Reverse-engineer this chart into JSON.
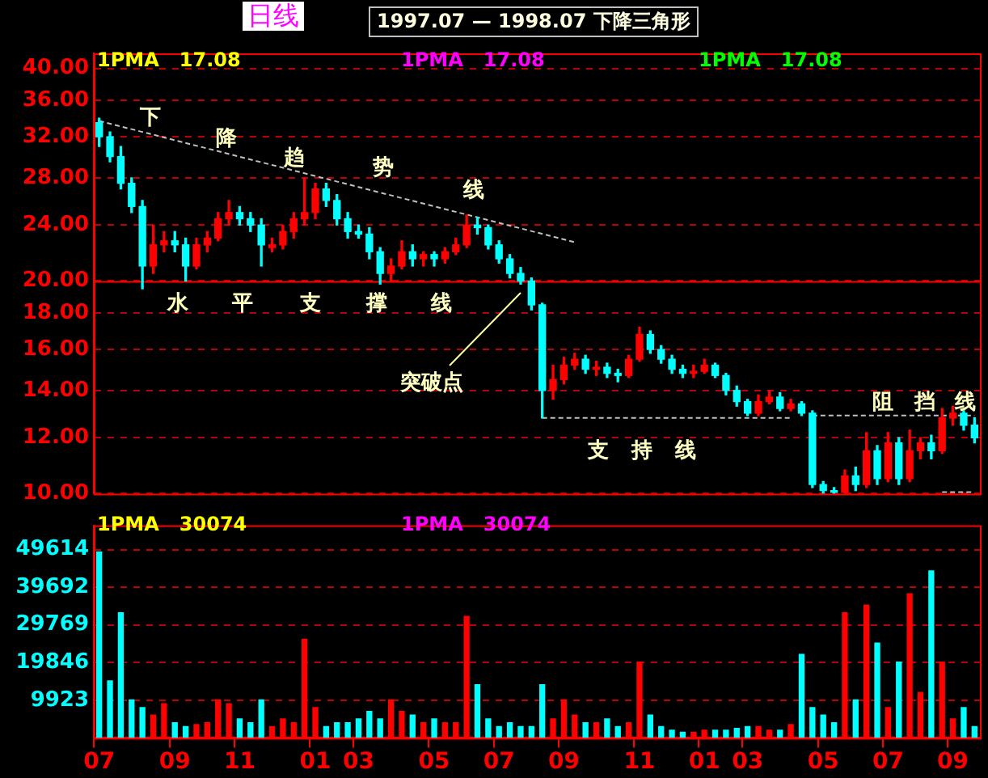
{
  "chart_data": [
    {
      "type": "candlestick",
      "title": "1997.07 — 1998.07 下降三角形",
      "subtitle": "日线",
      "categories": [
        "07",
        null,
        null,
        null,
        null,
        null,
        null,
        "09",
        null,
        null,
        null,
        null,
        null,
        "11",
        null,
        null,
        null,
        null,
        null,
        null,
        "01",
        null,
        null,
        null,
        "03",
        null,
        null,
        null,
        null,
        null,
        null,
        "05",
        null,
        null,
        null,
        null,
        null,
        "07",
        null,
        null,
        null,
        null,
        null,
        "09",
        null,
        null,
        null,
        null,
        null,
        null,
        "11",
        null,
        null,
        null,
        null,
        null,
        "01",
        null,
        null,
        null,
        "03",
        null,
        null,
        null,
        null,
        null,
        null,
        "05",
        null,
        null,
        null,
        null,
        null,
        "07",
        null,
        null,
        null,
        null,
        null,
        "09",
        null,
        null
      ],
      "ohlc": [
        [
          33.5,
          34,
          31,
          32
        ],
        [
          32,
          32.5,
          29.5,
          30
        ],
        [
          30,
          31,
          27,
          27.5
        ],
        [
          27.5,
          28,
          25,
          25.5
        ],
        [
          25.5,
          26,
          19.5,
          21
        ],
        [
          21,
          24,
          20.5,
          22.5
        ],
        [
          22.5,
          23.5,
          22,
          22.8
        ],
        [
          22.8,
          23.5,
          22,
          22.5
        ],
        [
          22.5,
          23,
          20,
          21
        ],
        [
          21,
          23,
          20.8,
          22.5
        ],
        [
          22.5,
          23.5,
          22,
          23
        ],
        [
          23,
          25,
          22.8,
          24.5
        ],
        [
          24.5,
          26,
          24,
          25
        ],
        [
          25,
          25.5,
          24,
          24.5
        ],
        [
          24.5,
          25,
          23.5,
          24
        ],
        [
          24,
          24.5,
          21,
          22.5
        ],
        [
          22.3,
          23,
          22,
          22.5
        ],
        [
          22.5,
          24,
          22.2,
          23.5
        ],
        [
          23.5,
          25,
          23,
          24.5
        ],
        [
          24.5,
          28,
          24,
          25
        ],
        [
          25,
          27.5,
          24.5,
          27
        ],
        [
          27,
          27.5,
          25.5,
          26
        ],
        [
          26,
          26.5,
          24,
          24.5
        ],
        [
          24.5,
          25,
          23,
          23.5
        ],
        [
          23.5,
          24,
          23,
          23.3
        ],
        [
          23.3,
          23.8,
          21.5,
          22
        ],
        [
          22,
          22.3,
          19.8,
          20.5
        ],
        [
          20.5,
          21.5,
          20,
          21
        ],
        [
          21,
          22.8,
          20.8,
          22
        ],
        [
          22,
          22.5,
          21,
          21.5
        ],
        [
          21.5,
          22,
          21,
          21.8
        ],
        [
          21.8,
          22,
          21,
          21.5
        ],
        [
          21.5,
          22.3,
          21.2,
          22
        ],
        [
          22,
          23,
          21.8,
          22.5
        ],
        [
          22.5,
          24.8,
          22.3,
          24
        ],
        [
          24,
          24.6,
          23.3,
          23.8
        ],
        [
          23.8,
          24,
          22.2,
          22.5
        ],
        [
          22.5,
          22.8,
          21.2,
          21.5
        ],
        [
          21.5,
          21.8,
          20.2,
          20.5
        ],
        [
          20.5,
          20.9,
          19.8,
          20
        ],
        [
          20,
          20.2,
          18.2,
          18.5
        ],
        [
          18.5,
          18.6,
          12.8,
          14
        ],
        [
          14,
          15.2,
          13.6,
          14.5
        ],
        [
          14.5,
          15.6,
          14.3,
          15.2
        ],
        [
          15.2,
          15.8,
          15,
          15.5
        ],
        [
          15.5,
          15.7,
          14.8,
          15
        ],
        [
          15,
          15.4,
          14.7,
          15.1
        ],
        [
          15.1,
          15.3,
          14.6,
          14.8
        ],
        [
          14.8,
          15,
          14.4,
          14.7
        ],
        [
          14.7,
          15.7,
          14.6,
          15.5
        ],
        [
          15.5,
          17.2,
          15.4,
          16.8
        ],
        [
          16.8,
          17,
          15.8,
          16
        ],
        [
          16,
          16.2,
          15.3,
          15.5
        ],
        [
          15.5,
          15.7,
          14.8,
          15
        ],
        [
          15,
          15.2,
          14.6,
          14.8
        ],
        [
          14.8,
          15.2,
          14.6,
          14.9
        ],
        [
          14.9,
          15.5,
          14.8,
          15.2
        ],
        [
          15.2,
          15.3,
          14.6,
          14.7
        ],
        [
          14.7,
          14.8,
          13.8,
          14
        ],
        [
          14,
          14.2,
          13.3,
          13.5
        ],
        [
          13.5,
          13.6,
          12.9,
          13
        ],
        [
          13,
          13.8,
          12.9,
          13.5
        ],
        [
          13.5,
          14,
          13.4,
          13.7
        ],
        [
          13.7,
          13.9,
          13.1,
          13.2
        ],
        [
          13.2,
          13.6,
          13.1,
          13.4
        ],
        [
          13.4,
          13.5,
          12.9,
          13
        ],
        [
          13,
          13.1,
          10.2,
          10.3
        ],
        [
          10.3,
          10.4,
          10,
          10.1
        ],
        [
          10.1,
          10.2,
          10,
          10.05
        ],
        [
          10.05,
          10.8,
          10,
          10.6
        ],
        [
          10.6,
          10.9,
          10.1,
          10.3
        ],
        [
          10.3,
          12.2,
          10.2,
          11.5
        ],
        [
          11.5,
          11.7,
          10.3,
          10.5
        ],
        [
          10.5,
          12.2,
          10.4,
          11.8
        ],
        [
          11.8,
          12,
          10.3,
          10.5
        ],
        [
          10.5,
          12.3,
          10.4,
          11.5
        ],
        [
          11.5,
          12,
          11.2,
          11.8
        ],
        [
          11.8,
          12.1,
          11.2,
          11.5
        ],
        [
          11.5,
          13.2,
          11.4,
          12.8
        ],
        [
          12.8,
          13.3,
          12.5,
          13
        ],
        [
          13,
          13.1,
          12.3,
          12.5
        ],
        [
          12.5,
          12.8,
          11.8,
          12
        ]
      ],
      "colors": [
        "#00ffff",
        "#00ffff",
        "#00ffff",
        "#00ffff",
        "#00ffff",
        "#ff0000",
        "#ff0000",
        "#00ffff",
        "#00ffff",
        "#ff0000",
        "#ff0000",
        "#ff0000",
        "#ff0000",
        "#00ffff",
        "#00ffff",
        "#00ffff",
        "#ff0000",
        "#ff0000",
        "#ff0000",
        "#ff0000",
        "#ff0000",
        "#00ffff",
        "#00ffff",
        "#00ffff",
        "#00ffff",
        "#00ffff",
        "#00ffff",
        "#ff0000",
        "#ff0000",
        "#00ffff",
        "#ff0000",
        "#00ffff",
        "#ff0000",
        "#ff0000",
        "#ff0000",
        "#00ffff",
        "#00ffff",
        "#00ffff",
        "#00ffff",
        "#00ffff",
        "#00ffff",
        "#00ffff",
        "#ff0000",
        "#ff0000",
        "#ff0000",
        "#00ffff",
        "#ff0000",
        "#00ffff",
        "#00ffff",
        "#ff0000",
        "#ff0000",
        "#00ffff",
        "#00ffff",
        "#00ffff",
        "#00ffff",
        "#ff0000",
        "#ff0000",
        "#00ffff",
        "#00ffff",
        "#00ffff",
        "#00ffff",
        "#ff0000",
        "#ff0000",
        "#00ffff",
        "#ff0000",
        "#00ffff",
        "#00ffff",
        "#00ffff",
        "#00ffff",
        "#ff0000",
        "#00ffff",
        "#ff0000",
        "#00ffff",
        "#ff0000",
        "#00ffff",
        "#ff0000",
        "#ff0000",
        "#00ffff",
        "#ff0000",
        "#ff0000",
        "#00ffff",
        "#00ffff"
      ],
      "series": [
        {
          "type": "line",
          "color": "#c0c0c0",
          "line_style": "dashed",
          "values": [
            33.7,
            null,
            null,
            null,
            null,
            null,
            null,
            null,
            null,
            null,
            null,
            null,
            null,
            null,
            null,
            null,
            null,
            null,
            null,
            null,
            null,
            null,
            null,
            null,
            null,
            null,
            null,
            null,
            null,
            null,
            null,
            null,
            null,
            null,
            null,
            null,
            null,
            null,
            null,
            null,
            null,
            null,
            null,
            null,
            22.7,
            null,
            null,
            null,
            null,
            null,
            null,
            null,
            null,
            null,
            null,
            null,
            null,
            null,
            null,
            null,
            null,
            null,
            null,
            null,
            null,
            null,
            null,
            null,
            null,
            null,
            null,
            null,
            null,
            null,
            null,
            null,
            null,
            null,
            null,
            null,
            null,
            null
          ]
        },
        {
          "type": "line",
          "color": "#c0c0c0",
          "line_style": "dashed",
          "values": [
            null,
            null,
            null,
            null,
            null,
            null,
            null,
            null,
            null,
            null,
            null,
            null,
            null,
            null,
            null,
            null,
            null,
            null,
            null,
            null,
            null,
            null,
            null,
            null,
            null,
            null,
            null,
            null,
            null,
            null,
            null,
            null,
            null,
            null,
            null,
            null,
            null,
            null,
            null,
            null,
            null,
            12.8,
            null,
            null,
            null,
            null,
            null,
            null,
            null,
            null,
            null,
            null,
            null,
            null,
            null,
            null,
            null,
            null,
            null,
            null,
            null,
            null,
            null,
            null,
            12.8,
            null,
            null,
            null,
            null,
            null,
            null,
            null,
            null,
            null,
            null,
            null,
            null,
            null,
            null,
            null,
            null,
            null
          ]
        },
        {
          "type": "line",
          "color": "#c0c0c0",
          "line_style": "dashed",
          "values": [
            null,
            null,
            null,
            null,
            null,
            null,
            null,
            null,
            null,
            null,
            null,
            null,
            null,
            null,
            null,
            null,
            null,
            null,
            null,
            null,
            null,
            null,
            null,
            null,
            null,
            null,
            null,
            null,
            null,
            null,
            null,
            null,
            null,
            null,
            null,
            null,
            null,
            null,
            null,
            null,
            null,
            null,
            null,
            null,
            null,
            null,
            null,
            null,
            null,
            null,
            null,
            null,
            null,
            null,
            null,
            null,
            null,
            null,
            null,
            null,
            null,
            null,
            null,
            null,
            null,
            null,
            12.9,
            null,
            null,
            null,
            null,
            null,
            null,
            null,
            null,
            null,
            null,
            null,
            null,
            null,
            null,
            12.9
          ]
        },
        {
          "type": "line",
          "color": "#c0c0c0",
          "line_style": "dashed",
          "values": [
            null,
            null,
            null,
            null,
            null,
            null,
            null,
            null,
            null,
            null,
            null,
            null,
            null,
            null,
            null,
            null,
            null,
            null,
            null,
            null,
            null,
            null,
            null,
            null,
            null,
            null,
            null,
            null,
            null,
            null,
            null,
            null,
            null,
            null,
            null,
            null,
            null,
            null,
            null,
            null,
            null,
            null,
            null,
            null,
            null,
            null,
            null,
            null,
            null,
            null,
            null,
            null,
            null,
            null,
            null,
            null,
            null,
            null,
            null,
            null,
            null,
            null,
            null,
            null,
            null,
            null,
            null,
            null,
            null,
            null,
            null,
            null,
            null,
            null,
            null,
            null,
            null,
            null,
            10.05,
            null,
            null,
            10.05
          ]
        }
      ],
      "ref_lines": [
        {
          "axis": "y",
          "value": 20,
          "color": "#ff0000"
        }
      ],
      "log": true,
      "ylim": [
        10,
        42
      ],
      "yticks": [
        {
          "value": 10,
          "label": "10.00"
        },
        {
          "value": 12,
          "label": "12.00"
        },
        {
          "value": 14,
          "label": "14.00"
        },
        {
          "value": 16,
          "label": "16.00"
        },
        {
          "value": 18,
          "label": "18.00"
        },
        {
          "value": 20,
          "label": "20.00"
        },
        {
          "value": 24,
          "label": "24.00"
        },
        {
          "value": 28,
          "label": "28.00"
        },
        {
          "value": 32,
          "label": "32.00"
        },
        {
          "value": 36,
          "label": "36.00"
        },
        {
          "value": 40,
          "label": "40.00"
        }
      ],
      "grid": "y",
      "tick_labels": "y",
      "annotations": [
        "1PMA   17.08",
        "1PMA   17.08",
        "1PMA   17.08",
        "下",
        "降",
        "趋",
        "势",
        "线",
        "水",
        "平",
        "支",
        "撑",
        "线",
        "突破点",
        "支",
        "持",
        "线",
        "阻",
        "挡",
        "线"
      ]
    },
    {
      "type": "bar",
      "categories": [
        "07",
        null,
        null,
        null,
        null,
        null,
        null,
        "09",
        null,
        null,
        null,
        null,
        null,
        "11",
        null,
        null,
        null,
        null,
        null,
        null,
        "01",
        null,
        null,
        null,
        "03",
        null,
        null,
        null,
        null,
        null,
        null,
        "05",
        null,
        null,
        null,
        null,
        null,
        "07",
        null,
        null,
        null,
        null,
        null,
        "09",
        null,
        null,
        null,
        null,
        null,
        null,
        "11",
        null,
        null,
        null,
        null,
        null,
        "01",
        null,
        null,
        null,
        "03",
        null,
        null,
        null,
        null,
        null,
        null,
        "05",
        null,
        null,
        null,
        null,
        null,
        "07",
        null,
        null,
        null,
        null,
        null,
        "09",
        null,
        null
      ],
      "values": [
        49000,
        15000,
        33000,
        10000,
        8000,
        6000,
        9000,
        4000,
        3000,
        3500,
        4000,
        10000,
        9000,
        5000,
        4000,
        10000,
        3000,
        5000,
        4000,
        26000,
        8000,
        3000,
        4000,
        4000,
        5000,
        7000,
        5000,
        10000,
        7000,
        6000,
        4000,
        5000,
        4000,
        4000,
        32000,
        14000,
        5000,
        3000,
        4000,
        3000,
        3000,
        14000,
        5000,
        10000,
        6000,
        4000,
        4000,
        5000,
        3000,
        4000,
        20000,
        6000,
        3000,
        2000,
        1500,
        1500,
        2000,
        2000,
        2000,
        2500,
        3000,
        3000,
        2000,
        2000,
        3500,
        22000,
        8000,
        6000,
        4000,
        33000,
        10000,
        35000,
        25000,
        8000,
        20000,
        38000,
        12000,
        44000,
        20000,
        5000,
        8000,
        3000
      ],
      "colors": [
        "#00ffff",
        "#00ffff",
        "#00ffff",
        "#00ffff",
        "#00ffff",
        "#ff0000",
        "#ff0000",
        "#00ffff",
        "#00ffff",
        "#ff0000",
        "#ff0000",
        "#ff0000",
        "#ff0000",
        "#00ffff",
        "#00ffff",
        "#00ffff",
        "#ff0000",
        "#ff0000",
        "#ff0000",
        "#ff0000",
        "#ff0000",
        "#00ffff",
        "#00ffff",
        "#00ffff",
        "#00ffff",
        "#00ffff",
        "#00ffff",
        "#ff0000",
        "#ff0000",
        "#00ffff",
        "#ff0000",
        "#00ffff",
        "#ff0000",
        "#ff0000",
        "#ff0000",
        "#00ffff",
        "#00ffff",
        "#00ffff",
        "#00ffff",
        "#00ffff",
        "#00ffff",
        "#00ffff",
        "#ff0000",
        "#ff0000",
        "#ff0000",
        "#00ffff",
        "#ff0000",
        "#00ffff",
        "#00ffff",
        "#ff0000",
        "#ff0000",
        "#00ffff",
        "#00ffff",
        "#00ffff",
        "#00ffff",
        "#ff0000",
        "#ff0000",
        "#00ffff",
        "#00ffff",
        "#00ffff",
        "#00ffff",
        "#ff0000",
        "#ff0000",
        "#00ffff",
        "#ff0000",
        "#00ffff",
        "#00ffff",
        "#00ffff",
        "#00ffff",
        "#ff0000",
        "#00ffff",
        "#ff0000",
        "#00ffff",
        "#ff0000",
        "#00ffff",
        "#ff0000",
        "#ff0000",
        "#00ffff",
        "#ff0000",
        "#ff0000",
        "#00ffff",
        "#00ffff"
      ],
      "ylim": [
        0,
        56000
      ],
      "yticks": [
        9923,
        19846,
        29769,
        39692,
        49614
      ],
      "grid": "y",
      "annotations": [
        "1PMA   30074",
        "1PMA   30074"
      ]
    }
  ]
}
